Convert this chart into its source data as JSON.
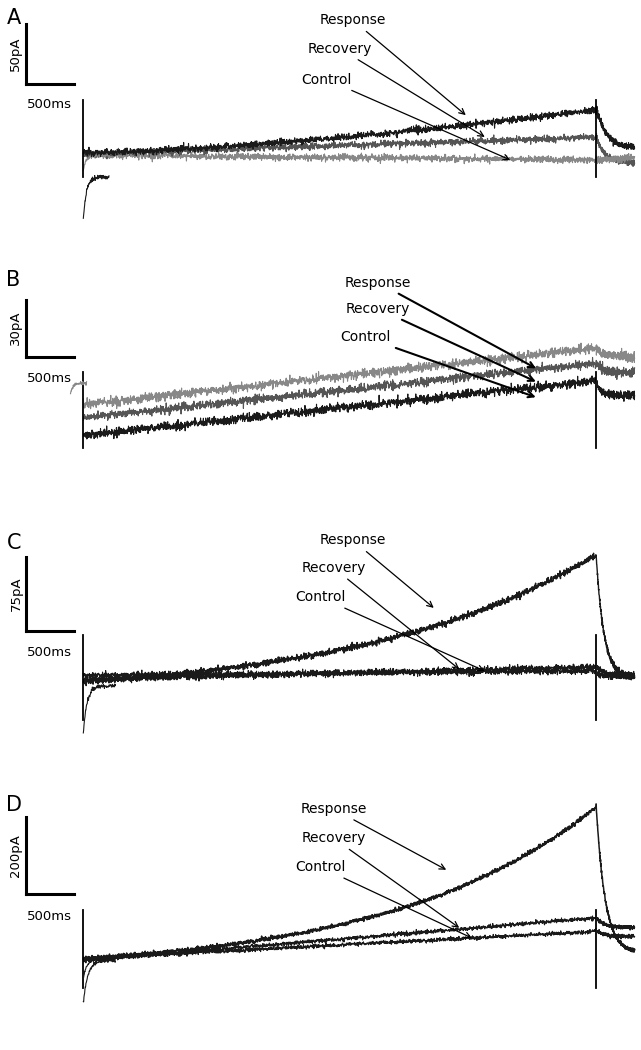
{
  "panels": [
    {
      "label": "A",
      "scale_bar_current": "50pA",
      "scale_bar_time": "500ms"
    },
    {
      "label": "B",
      "scale_bar_current": "30pA",
      "scale_bar_time": "500ms"
    },
    {
      "label": "C",
      "scale_bar_current": "75pA",
      "scale_bar_time": "500ms"
    },
    {
      "label": "D",
      "scale_bar_current": "200pA",
      "scale_bar_time": "500ms"
    }
  ],
  "fig_width": 6.41,
  "fig_height": 10.5,
  "dpi": 100,
  "label_fontsize": 15,
  "annot_fontsize": 10,
  "scale_fontsize": 9.5
}
